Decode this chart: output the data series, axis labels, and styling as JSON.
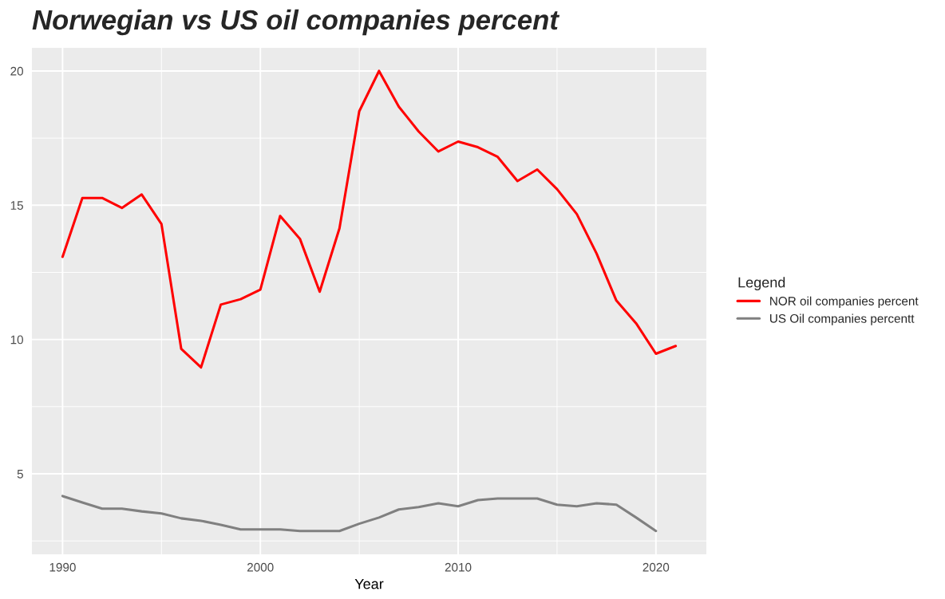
{
  "chart_data": {
    "type": "line",
    "title": "Norwegian vs US oil companies percent",
    "xlabel": "Year",
    "legend_title": "Legend",
    "legend": "right",
    "grid": true,
    "x": [
      1990,
      1991,
      1992,
      1993,
      1994,
      1995,
      1996,
      1997,
      1998,
      1999,
      2000,
      2001,
      2002,
      2003,
      2004,
      2005,
      2006,
      2007,
      2008,
      2009,
      2010,
      2011,
      2012,
      2013,
      2014,
      2015,
      2016,
      2017,
      2018,
      2019,
      2020,
      2021
    ],
    "series": [
      {
        "name": "NOR oil companies percent",
        "color": "#ff0000",
        "values": [
          13.08,
          15.27,
          15.27,
          14.9,
          15.4,
          14.3,
          9.65,
          8.96,
          11.3,
          11.5,
          11.86,
          14.6,
          13.75,
          11.78,
          14.14,
          18.5,
          20.0,
          18.67,
          17.75,
          17.0,
          17.37,
          17.16,
          16.8,
          15.9,
          16.33,
          15.6,
          14.67,
          13.2,
          11.45,
          10.6,
          9.47,
          9.76
        ]
      },
      {
        "name": "US Oil companies percentt",
        "color": "#808080",
        "values": [
          4.17,
          3.93,
          3.7,
          3.7,
          3.6,
          3.52,
          3.34,
          3.25,
          3.1,
          2.93,
          2.93,
          2.93,
          2.87,
          2.87,
          2.87,
          3.14,
          3.37,
          3.67,
          3.76,
          3.9,
          3.79,
          4.02,
          4.08,
          4.08,
          4.08,
          3.85,
          3.79,
          3.9,
          3.85,
          3.37,
          2.87,
          null
        ]
      }
    ],
    "xlim": [
      1988.45,
      2022.55
    ],
    "ylim": [
      2.0,
      20.86
    ],
    "xticks": [
      1990,
      {
        "value": 1995,
        "label": null
      },
      2000,
      {
        "value": 2005,
        "label": null
      },
      2010,
      {
        "value": 2015,
        "label": null
      },
      2020
    ],
    "yticks": [
      {
        "value": 2.5,
        "label": null
      },
      5,
      {
        "value": 7.5,
        "label": null
      },
      10,
      {
        "value": 12.5,
        "label": null
      },
      15,
      {
        "value": 17.5,
        "label": null
      },
      20
    ]
  }
}
